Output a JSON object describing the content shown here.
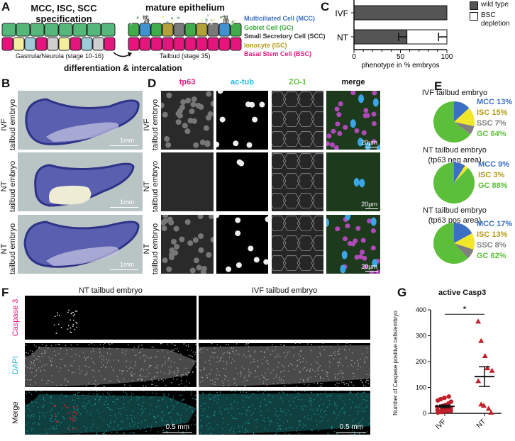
{
  "panels": {
    "A": {
      "label": "A",
      "left_title": [
        "MCC, ISC, SCC",
        "specification"
      ],
      "right_title": "mature epithelium",
      "left_stage": "Gastrula/Neurula (stage 10-16)",
      "right_stage": "Tailbud (stage 35)",
      "transition": "differentiation & intercalation",
      "legend": [
        {
          "text": "Multiciliated Cell (MCC)",
          "color": "#3b6fc4"
        },
        {
          "text": "Goblet Cell (GC)",
          "color": "#3aaa3a"
        },
        {
          "text": "Small Secretory Cell (SCC)",
          "color": "#333333"
        },
        {
          "text": "Ionocyte (ISC)",
          "color": "#b59a1a"
        },
        {
          "text": "Basal Stem Cell (BSC)",
          "color": "#e6157e"
        }
      ],
      "colors": {
        "goblet": "#55b87a",
        "basal": "#e6157e",
        "ionocyte_early": "#f3ef9e",
        "mcc_early": "#9ecbd9",
        "ssc_early": "#cfcfcf",
        "mcc": "#3f93d0",
        "ionocyte": "#b3a13a",
        "ssc": "#7a7a7a",
        "goblet_mature": "#3fae4a"
      }
    },
    "B": {
      "label": "B",
      "rows": [
        {
          "label": [
            "IVF",
            "tailbud embryo"
          ],
          "scale": "1mm"
        },
        {
          "label": [
            "NT",
            "tailbud embryo"
          ],
          "scale": "1mm"
        },
        {
          "label": [
            "NT",
            "tailbud embryo"
          ],
          "scale": "1mm"
        }
      ]
    },
    "C": {
      "label": "C",
      "chart_data": {
        "type": "bar",
        "orientation": "horizontal-stacked",
        "categories": [
          "IVF",
          "NT"
        ],
        "series": [
          {
            "name": "wild type",
            "values": [
              100,
              57
            ],
            "error": [
              0,
              9
            ],
            "color": "#555555"
          },
          {
            "name": "BSC depletion",
            "values": [
              0,
              43
            ],
            "error": [
              0,
              9
            ],
            "color": "#ffffff"
          }
        ],
        "xlabel": "phenotype in % embryos",
        "xlim": [
          0,
          100
        ],
        "xticks": [
          "0",
          "50",
          "100"
        ],
        "legend_position": "right"
      },
      "legend": [
        "wild type",
        "BSC depletion"
      ]
    },
    "D": {
      "label": "D",
      "columns": [
        {
          "text": "tp63",
          "color": "#e6157e"
        },
        {
          "text": "ac-tub",
          "color": "#29b6e6"
        },
        {
          "text": "ZO-1",
          "color": "#5cbf3a"
        },
        {
          "text": "merge",
          "color": "#111111"
        }
      ],
      "rows": [
        [
          "IVF",
          "tailbud embryo"
        ],
        [
          "NT",
          "tailbud embryo"
        ],
        [
          "NT",
          "tailbud embryo"
        ]
      ],
      "scale": "20µm"
    },
    "E": {
      "label": "E",
      "chart_data": [
        {
          "type": "pie",
          "title": [
            "IVF tailbud embryo"
          ],
          "slices": [
            {
              "name": "MCC",
              "value": 13,
              "label": "MCC 13%",
              "color": "#3b6fc4"
            },
            {
              "name": "ISC",
              "value": 15,
              "label": "ISC 15%",
              "color": "#f2e82a",
              "text_color": "#b59a1a"
            },
            {
              "name": "SSC",
              "value": 7,
              "label": "SSC 7%",
              "color": "#808080"
            },
            {
              "name": "GC",
              "value": 64,
              "label": "GC 64%",
              "color": "#5cbf3a"
            }
          ]
        },
        {
          "type": "pie",
          "title": [
            "NT tailbud embryo",
            "(tp63 neg area)"
          ],
          "slices": [
            {
              "name": "MCC",
              "value": 9,
              "label": "MCC 9%",
              "color": "#3b6fc4"
            },
            {
              "name": "ISC",
              "value": 3,
              "label": "ISC 3%",
              "color": "#f2e82a",
              "text_color": "#b59a1a"
            },
            {
              "name": "GC",
              "value": 88,
              "label": "GC 88%",
              "color": "#5cbf3a"
            }
          ]
        },
        {
          "type": "pie",
          "title": [
            "NT tailbud embryo",
            "(tp63 pos area)"
          ],
          "slices": [
            {
              "name": "MCC",
              "value": 17,
              "label": "MCC 17%",
              "color": "#3b6fc4"
            },
            {
              "name": "ISC",
              "value": 13,
              "label": "ISC 13%",
              "color": "#f2e82a",
              "text_color": "#b59a1a"
            },
            {
              "name": "SSC",
              "value": 8,
              "label": "SSC 8%",
              "color": "#808080"
            },
            {
              "name": "GC",
              "value": 62,
              "label": "GC 62%",
              "color": "#5cbf3a"
            }
          ]
        }
      ]
    },
    "F": {
      "label": "F",
      "columns": [
        "NT tailbud embryo",
        "IVF tailbud embryo"
      ],
      "rows": [
        {
          "text": "Caspase 3",
          "color": "#e6157e"
        },
        {
          "text": "DAPI",
          "color": "#29b6e6"
        },
        {
          "text": "Merge",
          "color": "#111111"
        }
      ],
      "scale": "0.5 mm"
    },
    "G": {
      "label": "G",
      "chart_data": {
        "type": "scatter",
        "title": "active Casp3",
        "ylabel": "Number of Caspase positive cells/embryo",
        "categories": [
          "IVF",
          "NT"
        ],
        "ylim": [
          0,
          400
        ],
        "yticks": [
          "0",
          "100",
          "200",
          "300",
          "400"
        ],
        "series": [
          {
            "category": "IVF",
            "marker": "circle",
            "color": "#c0202a",
            "values": [
              3,
              5,
              8,
              10,
              10,
              12,
              15,
              18,
              20,
              22,
              25,
              28,
              32,
              38,
              45,
              50,
              55,
              60,
              65
            ],
            "mean": 27,
            "sem": 5
          },
          {
            "category": "NT",
            "marker": "triangle",
            "color": "#c0202a",
            "values": [
              355,
              280,
              222,
              175,
              165,
              125,
              35,
              30,
              18,
              3
            ],
            "mean": 142,
            "sem": 38
          }
        ],
        "significance": "*"
      }
    }
  }
}
